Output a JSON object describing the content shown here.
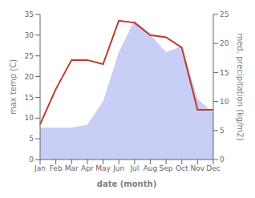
{
  "chart_data": {
    "type": "line",
    "xlabel": "date (month)",
    "ylabel": "max temp (C)",
    "y2label": "med. precipitation (kg/m2)",
    "categories": [
      "Jan",
      "Feb",
      "Mar",
      "Apr",
      "May",
      "Jun",
      "Jul",
      "Aug",
      "Sep",
      "Oct",
      "Nov",
      "Dec"
    ],
    "series": [
      {
        "type": "area",
        "axis": "y2",
        "color": "#c8cef5",
        "values": [
          5.5,
          5.5,
          5.5,
          6.0,
          10.0,
          18.5,
          24.0,
          21.5,
          18.5,
          19.5,
          10.5,
          8.0
        ]
      },
      {
        "type": "line",
        "color": "#c0392b",
        "values": [
          8.5,
          17.0,
          24.0,
          24.0,
          23.0,
          33.5,
          33.0,
          30.0,
          29.5,
          27.0,
          12.0,
          12.0
        ]
      }
    ],
    "ylim": [
      0,
      35
    ],
    "yticks": [
      0,
      5,
      10,
      15,
      20,
      25,
      30,
      35
    ],
    "y2lim": [
      0,
      25
    ],
    "y2ticks": [
      0,
      5,
      10,
      15,
      20,
      25
    ],
    "grid": false
  }
}
